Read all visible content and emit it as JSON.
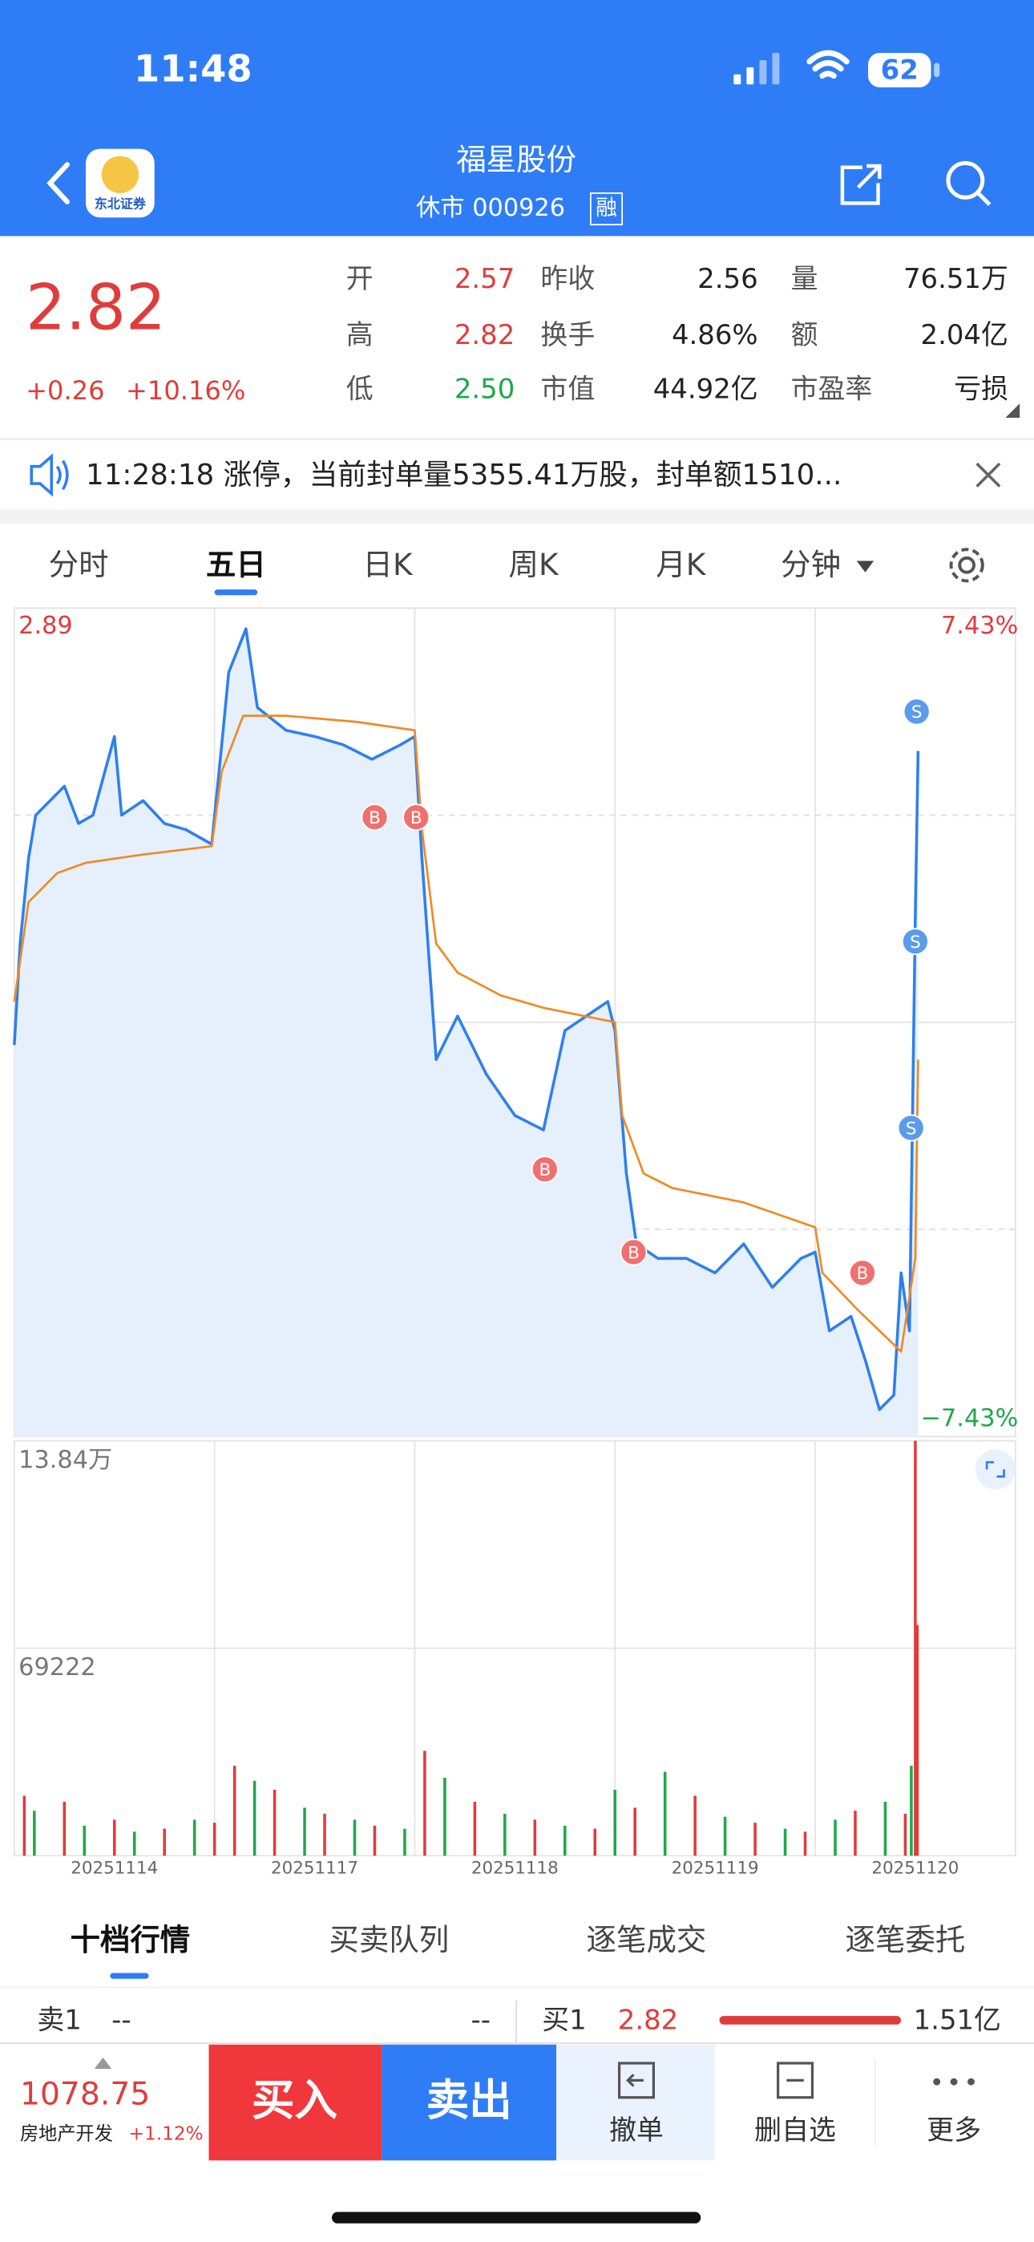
{
  "status_bar": {
    "time": "11:48",
    "battery": "62"
  },
  "header": {
    "logo": "东北证券",
    "title": "福星股份",
    "subtitle": "休市 000926",
    "badge": "融"
  },
  "quote": {
    "price": "2.82",
    "change": "+0.26",
    "change_pct": "+10.16%",
    "stats": [
      {
        "label": "开",
        "value": "2.57",
        "color": "#e03c3c"
      },
      {
        "label": "昨收",
        "value": "2.56",
        "color": "#222222"
      },
      {
        "label": "量",
        "value": "76.51万",
        "color": "#222222"
      },
      {
        "label": "高",
        "value": "2.82",
        "color": "#e03c3c"
      },
      {
        "label": "换手",
        "value": "4.86%",
        "color": "#222222"
      },
      {
        "label": "额",
        "value": "2.04亿",
        "color": "#222222"
      },
      {
        "label": "低",
        "value": "2.50",
        "color": "#1fa84a"
      },
      {
        "label": "市值",
        "value": "44.92亿",
        "color": "#222222"
      },
      {
        "label": "市盈率",
        "value": "亏损",
        "color": "#222222"
      }
    ]
  },
  "notice": "11:28:18 涨停，当前封单量5355.41万股，封单额1510...",
  "tabs": [
    "分时",
    "五日",
    "日K",
    "周K",
    "月K",
    "分钟"
  ],
  "chart_data": [
    {
      "type": "line",
      "xlim": [
        0,
        5
      ],
      "ylim": [
        2.49,
        2.89
      ],
      "yticks": [
        2.49,
        2.69,
        2.89
      ],
      "dashed_grid": [
        2.59,
        2.79
      ],
      "xgrid": [
        1,
        2,
        3,
        4
      ],
      "y2lim": [
        -7.43,
        7.43
      ],
      "y2ticks": [
        {
          "value": 7.43,
          "label": "7.43%"
        },
        {
          "value": -7.43,
          "label": "−7.43%"
        }
      ],
      "series": [
        {
          "color": "#2f80ed",
          "fill": "#e6f0fc",
          "x": [
            0,
            0.029,
            0.071,
            0.107,
            0.179,
            0.25,
            0.321,
            0.393,
            0.5,
            0.536,
            0.643,
            0.75,
            0.857,
            0.986,
            1.036,
            1.071,
            1.157,
            1.214,
            1.357,
            1.5,
            1.643,
            1.786,
            1.929,
            2.0,
            2.036,
            2.107,
            2.214,
            2.357,
            2.5,
            2.643,
            2.75,
            2.857,
            2.964,
            3.0,
            3.057,
            3.107,
            3.214,
            3.357,
            3.5,
            3.643,
            3.786,
            3.929,
            4.0,
            4.071,
            4.179,
            4.25,
            4.321,
            4.393,
            4.429,
            4.471,
            4.5,
            4.514
          ],
          "values": [
            2.679,
            2.728,
            2.769,
            2.79,
            2.797,
            2.804,
            2.786,
            2.79,
            2.828,
            2.79,
            2.797,
            2.786,
            2.783,
            2.776,
            2.824,
            2.859,
            2.88,
            2.842,
            2.831,
            2.828,
            2.824,
            2.817,
            2.824,
            2.828,
            2.769,
            2.672,
            2.693,
            2.665,
            2.645,
            2.638,
            2.686,
            2.693,
            2.7,
            2.686,
            2.617,
            2.583,
            2.576,
            2.576,
            2.569,
            2.583,
            2.562,
            2.576,
            2.579,
            2.541,
            2.548,
            2.527,
            2.503,
            2.51,
            2.569,
            2.541,
            2.741,
            2.821
          ]
        },
        {
          "color": "#f08a24",
          "x": [
            0,
            0.071,
            0.214,
            0.357,
            0.643,
            0.986,
            1.036,
            1.143,
            1.357,
            1.714,
            2.0,
            2.036,
            2.107,
            2.214,
            2.429,
            2.643,
            3.0,
            3.036,
            3.143,
            3.286,
            3.643,
            4.0,
            4.036,
            4.214,
            4.429,
            4.5,
            4.514
          ],
          "values": [
            2.7,
            2.748,
            2.762,
            2.767,
            2.771,
            2.775,
            2.811,
            2.838,
            2.838,
            2.835,
            2.831,
            2.783,
            2.728,
            2.714,
            2.703,
            2.697,
            2.69,
            2.645,
            2.617,
            2.61,
            2.603,
            2.591,
            2.569,
            2.551,
            2.531,
            2.576,
            2.672
          ]
        }
      ],
      "markers": [
        {
          "x": 1.8,
          "y": 2.789,
          "label": "B",
          "color": "#f07070"
        },
        {
          "x": 2.007,
          "y": 2.789,
          "label": "B",
          "color": "#f07070"
        },
        {
          "x": 2.65,
          "y": 2.619,
          "label": "B",
          "color": "#f07070"
        },
        {
          "x": 3.093,
          "y": 2.579,
          "label": "B",
          "color": "#f07070"
        },
        {
          "x": 4.236,
          "y": 2.569,
          "label": "B",
          "color": "#f07070"
        },
        {
          "x": 4.507,
          "y": 2.84,
          "label": "S",
          "color": "#5b9bea"
        },
        {
          "x": 4.5,
          "y": 2.729,
          "label": "S",
          "color": "#5b9bea"
        },
        {
          "x": 4.479,
          "y": 2.639,
          "label": "S",
          "color": "#5b9bea"
        }
      ]
    },
    {
      "type": "bar",
      "categories": [
        "20251114",
        "20251117",
        "20251118",
        "20251119",
        "20251120"
      ],
      "xlim": [
        0,
        5
      ],
      "ylim": [
        0,
        138444
      ],
      "yticks": [
        {
          "value": 138444,
          "label": "13.84万"
        },
        69222
      ],
      "series": [
        {
          "color": "#e03c3c",
          "x": [
            0.05,
            0.25,
            0.5,
            0.75,
            1.0,
            1.1,
            1.3,
            1.55,
            1.8,
            2.05,
            2.3,
            2.6,
            2.9,
            3.1,
            3.4,
            3.7,
            3.95,
            4.2,
            4.45,
            4.5,
            4.51
          ],
          "values": [
            20000,
            18000,
            12000,
            9000,
            11000,
            30000,
            22000,
            14000,
            10000,
            35000,
            18000,
            12000,
            9000,
            16000,
            20000,
            11000,
            8000,
            15000,
            14000,
            138444,
            77000
          ]
        },
        {
          "color": "#1fa84a",
          "x": [
            0.1,
            0.35,
            0.6,
            0.9,
            1.2,
            1.45,
            1.7,
            1.95,
            2.15,
            2.45,
            2.75,
            3.0,
            3.25,
            3.55,
            3.85,
            4.1,
            4.35,
            4.48
          ],
          "values": [
            15000,
            10000,
            8000,
            12000,
            25000,
            16000,
            12000,
            9000,
            26000,
            14000,
            10000,
            22000,
            28000,
            13000,
            9000,
            12000,
            18000,
            30000
          ]
        }
      ]
    }
  ],
  "book_tabs": [
    "十档行情",
    "买卖队列",
    "逐笔成交",
    "逐笔委托"
  ],
  "order_row": {
    "sell_label": "卖1",
    "sell_price": "--",
    "sell_volume": "--",
    "buy_label": "买1",
    "buy_price": "2.82",
    "buy_volume": "1.51亿"
  },
  "bottom_bar": {
    "index_value": "1078.75",
    "index_name": "房地产开发",
    "index_change": "+1.12%",
    "buy": "买入",
    "sell": "卖出",
    "cancel": "撤单",
    "remove": "删自选",
    "more": "更多"
  }
}
